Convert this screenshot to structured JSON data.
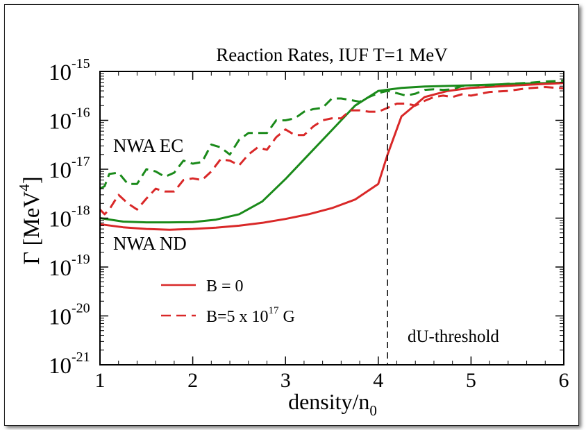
{
  "chart_data": {
    "type": "line",
    "title": "Reaction Rates,  IUF  T=1 MeV",
    "xlabel": "density/n",
    "xlabel_sub": "0",
    "ylabel": "Γ [MeV",
    "ylabel_sup": "4",
    "ylabel_close": "]",
    "xlim": [
      1,
      6
    ],
    "ylim": [
      1e-21,
      1e-15
    ],
    "yscale": "log",
    "grid": false,
    "xticks": [
      1,
      2,
      3,
      4,
      5,
      6
    ],
    "xtick_labels": [
      "1",
      "2",
      "3",
      "4",
      "5",
      "6"
    ],
    "yticks": [
      1e-21,
      1e-20,
      1e-19,
      1e-18,
      1e-17,
      1e-16,
      1e-15
    ],
    "ytick_labels": [
      {
        "base": "10",
        "exp": "-21"
      },
      {
        "base": "10",
        "exp": "-20"
      },
      {
        "base": "10",
        "exp": "-19"
      },
      {
        "base": "10",
        "exp": "-18"
      },
      {
        "base": "10",
        "exp": "-17"
      },
      {
        "base": "10",
        "exp": "-16"
      },
      {
        "base": "10",
        "exp": "-15"
      }
    ],
    "colors": {
      "EC": "#1a8a1a",
      "ND": "#d92828",
      "axis": "#000000"
    },
    "series": [
      {
        "group": "EC",
        "style": "solid",
        "x": [
          1.0,
          1.25,
          1.5,
          1.75,
          2.0,
          2.25,
          2.5,
          2.75,
          3.0,
          3.25,
          3.5,
          3.75,
          4.0,
          4.25,
          4.5,
          5.0,
          5.5,
          6.0
        ],
        "y": [
          1e-18,
          8.5e-19,
          8.2e-19,
          8.2e-19,
          8.3e-19,
          9.3e-19,
          1.2e-18,
          2.2e-18,
          6.3e-18,
          2e-17,
          6.3e-17,
          2e-16,
          4e-16,
          4.6e-16,
          4.9e-16,
          5.2e-16,
          5.6e-16,
          5.9e-16
        ]
      },
      {
        "group": "ND",
        "style": "solid",
        "x": [
          1.0,
          1.25,
          1.5,
          1.75,
          2.0,
          2.25,
          2.5,
          2.75,
          3.0,
          3.25,
          3.5,
          3.75,
          4.0,
          4.1,
          4.25,
          4.5,
          4.75,
          5.0,
          5.5,
          6.0
        ],
        "y": [
          7.5e-19,
          6.5e-19,
          6e-19,
          5.8e-19,
          6e-19,
          6.4e-19,
          7e-19,
          8e-19,
          9.6e-19,
          1.2e-18,
          1.6e-18,
          2.4e-18,
          5e-18,
          2e-17,
          1.2e-16,
          3e-16,
          4e-16,
          4.6e-16,
          5.2e-16,
          5.8e-16
        ]
      },
      {
        "group": "EC",
        "style": "dashed",
        "x": [
          1.0,
          1.05,
          1.1,
          1.2,
          1.3,
          1.4,
          1.5,
          1.6,
          1.7,
          1.8,
          1.9,
          2.0,
          2.1,
          2.2,
          2.3,
          2.4,
          2.5,
          2.6,
          2.7,
          2.8,
          2.9,
          3.0,
          3.1,
          3.2,
          3.3,
          3.4,
          3.5,
          3.6,
          3.7,
          3.8,
          3.9,
          4.0,
          4.1,
          4.2,
          4.3,
          4.4,
          4.5,
          4.6,
          4.7,
          4.8,
          4.9,
          5.0,
          5.2,
          5.4,
          5.6,
          5.8,
          6.0
        ],
        "y": [
          4e-18,
          4.5e-18,
          8e-18,
          8.5e-18,
          5e-18,
          5e-18,
          1e-17,
          9e-18,
          7e-18,
          8.5e-18,
          1.5e-17,
          1.3e-17,
          1.4e-17,
          3.2e-17,
          2.8e-17,
          2e-17,
          4e-17,
          5.5e-17,
          5.5e-17,
          5.5e-17,
          1e-16,
          1e-16,
          1.1e-16,
          1.5e-16,
          1.7e-16,
          1.8e-16,
          2.8e-16,
          2.8e-16,
          2.6e-16,
          2.4e-16,
          3e-16,
          3.6e-16,
          4e-16,
          3.6e-16,
          3.2e-16,
          3.5e-16,
          4.2e-16,
          4.3e-16,
          4.2e-16,
          4.3e-16,
          5e-16,
          5.2e-16,
          5.2e-16,
          5.6e-16,
          5.8e-16,
          6.2e-16,
          6.5e-16
        ]
      },
      {
        "group": "ND",
        "style": "dashed",
        "x": [
          1.0,
          1.05,
          1.1,
          1.2,
          1.3,
          1.4,
          1.5,
          1.6,
          1.7,
          1.8,
          1.9,
          2.0,
          2.1,
          2.2,
          2.3,
          2.4,
          2.5,
          2.6,
          2.7,
          2.8,
          2.9,
          3.0,
          3.1,
          3.2,
          3.3,
          3.4,
          3.5,
          3.6,
          3.7,
          3.8,
          3.9,
          4.0,
          4.1,
          4.2,
          4.3,
          4.4,
          4.5,
          4.6,
          4.7,
          4.8,
          4.9,
          5.0,
          5.2,
          5.4,
          5.6,
          5.8,
          6.0
        ],
        "y": [
          1.5e-18,
          1.2e-18,
          1.5e-18,
          3e-18,
          2e-18,
          1.5e-18,
          2.5e-18,
          4e-18,
          3.5e-18,
          3.5e-18,
          6e-18,
          6.5e-18,
          6e-18,
          9e-18,
          1.6e-17,
          1.5e-17,
          1.2e-17,
          2e-17,
          2.8e-17,
          2.5e-17,
          4.5e-17,
          6.5e-17,
          5e-17,
          5e-17,
          7.5e-17,
          1e-16,
          1.1e-16,
          1.1e-16,
          1.6e-16,
          1.6e-16,
          1.5e-16,
          1.5e-16,
          1.8e-16,
          2.2e-16,
          2.2e-16,
          2e-16,
          2.5e-16,
          3e-16,
          3.2e-16,
          3e-16,
          3.4e-16,
          3.2e-16,
          3.8e-16,
          4e-16,
          4.5e-16,
          4.8e-16,
          4.5e-16
        ]
      }
    ],
    "annotations": {
      "ec": "NWA EC",
      "nd": "NWA ND",
      "threshold": "dU-threshold",
      "threshold_x": 4.1
    },
    "legend": {
      "placement": "lower-left",
      "entries": [
        {
          "style": "solid",
          "text": "B = 0"
        },
        {
          "style": "dashed",
          "text": "B=5 x 10",
          "sup": "17",
          "suffix": " G"
        }
      ]
    }
  }
}
